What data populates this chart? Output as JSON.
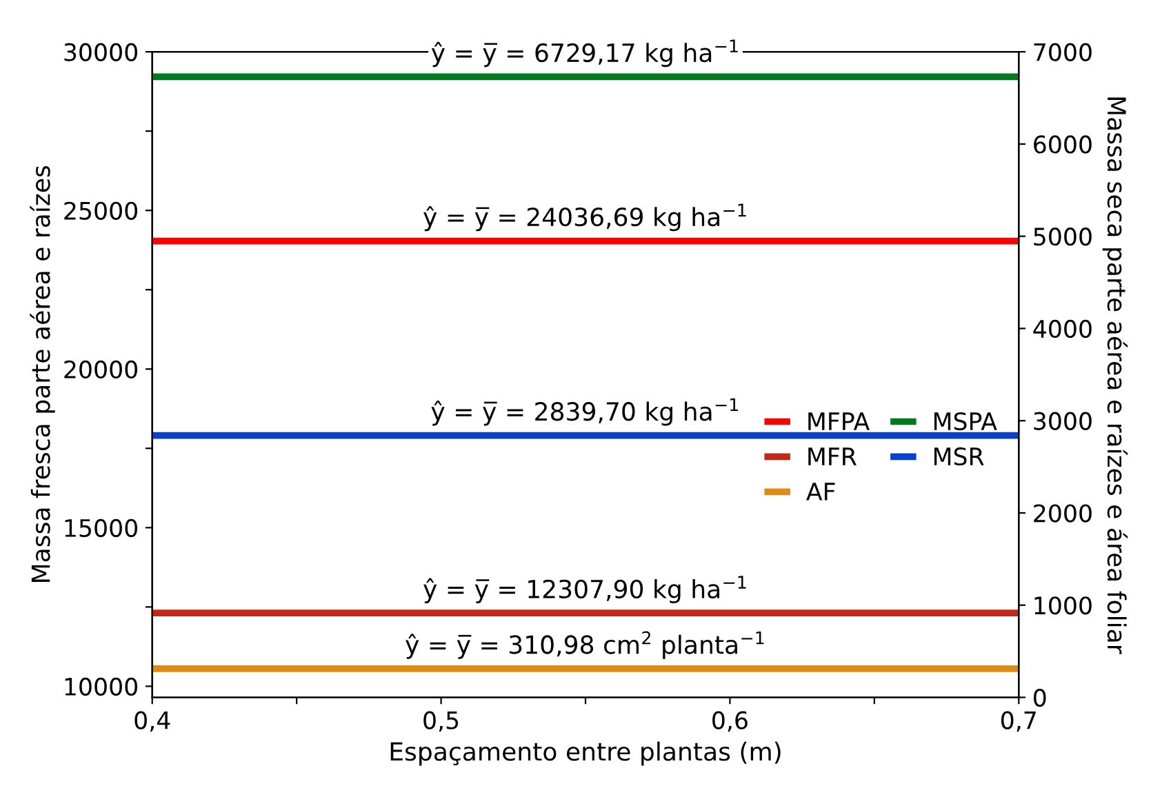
{
  "chart_data": {
    "type": "line",
    "xlabel": "Espaçamento entre plantas (m)",
    "ylabel": "Massa fresca parte aérea e raízes",
    "y2label": "Massa seca parte aérea e raízes e área foliar",
    "xlim": [
      0.4,
      0.7
    ],
    "xticks": [
      {
        "value": 0.4,
        "label": "0,4"
      },
      {
        "value": 0.45,
        "label": null
      },
      {
        "value": 0.5,
        "label": "0,5"
      },
      {
        "value": 0.55,
        "label": null
      },
      {
        "value": 0.6,
        "label": "0,6"
      },
      {
        "value": 0.65,
        "label": null
      },
      {
        "value": 0.7,
        "label": "0,7"
      }
    ],
    "ylim": [
      9650,
      30000
    ],
    "yticks": [
      10000,
      {
        "value": 12500,
        "label": null
      },
      15000,
      {
        "value": 17500,
        "label": null
      },
      20000,
      {
        "value": 22500,
        "label": null
      },
      25000,
      {
        "value": 27500,
        "label": null
      },
      30000
    ],
    "y2lim": [
      0,
      7000
    ],
    "y2ticks": [
      0,
      1000,
      2000,
      3000,
      4000,
      5000,
      6000,
      7000
    ],
    "grid": false,
    "legend": "right",
    "x": [
      0.4,
      0.7
    ],
    "marker": "none",
    "line_style": "solid",
    "series": [
      {
        "name": "MFPA",
        "color": "#ff0000",
        "values": [
          24036.69,
          24036.69
        ]
      },
      {
        "name": "MSPA",
        "color": "#007a1e",
        "values": [
          6729.17,
          6729.17
        ],
        "axis": "y2"
      },
      {
        "name": "MFR",
        "color": "#c0281a",
        "values": [
          12307.9,
          12307.9
        ]
      },
      {
        "name": "MSR",
        "color": "#0a40d0",
        "values": [
          2839.7,
          2839.7
        ],
        "axis": "y2"
      },
      {
        "name": "AF",
        "color": "#e08a10",
        "values": [
          310.98,
          310.98
        ],
        "axis": "y2"
      }
    ],
    "annotations": [
      "ŷ = y̅ = 24036,69 kg ha$^{−1}$",
      "ŷ = y̅ = 6729,17 kg ha$^{−1}$",
      "ŷ = y̅ = 12307,90 kg ha$^{−1}$",
      "ŷ = y̅ = 2839,70 kg ha$^{−1}$",
      "ŷ = y̅ = 310,98 cm$^{2}$ planta$^{−1}$"
    ]
  }
}
